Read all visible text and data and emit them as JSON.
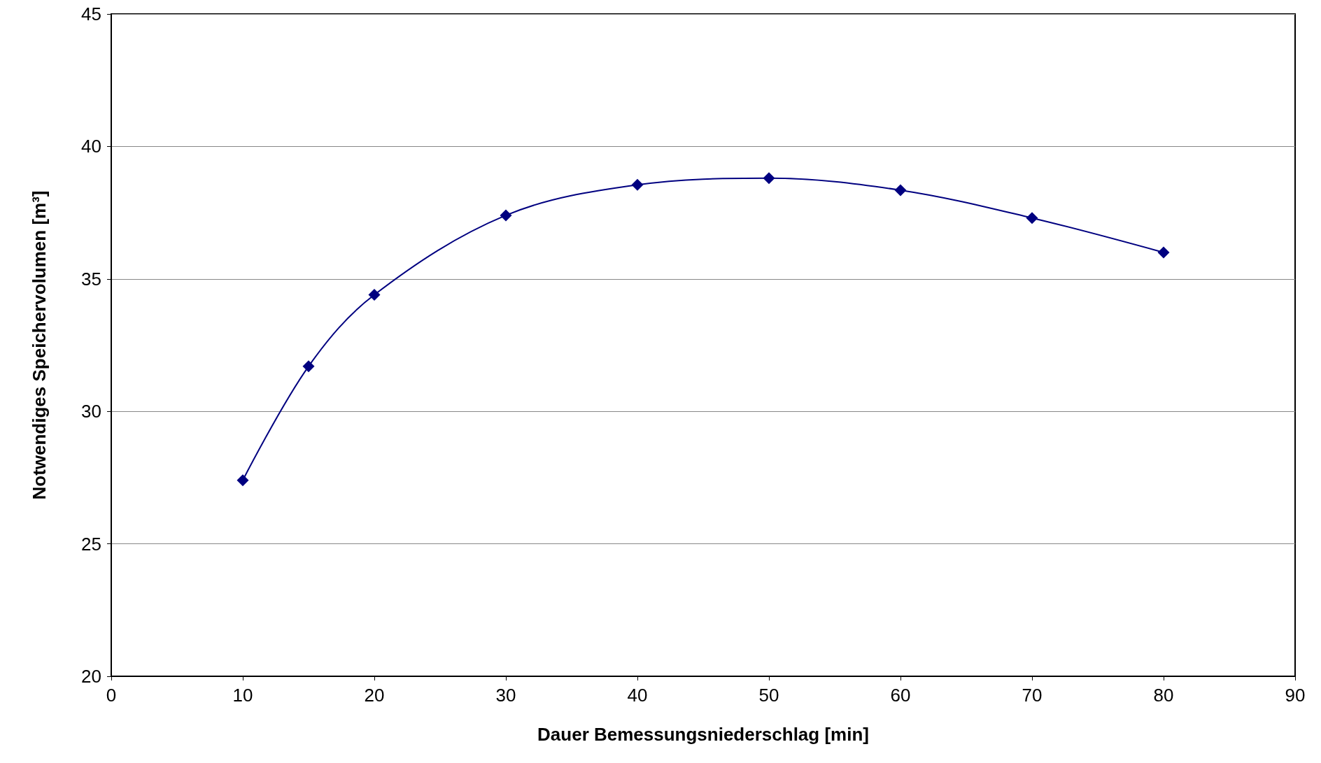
{
  "chart_data": {
    "type": "line",
    "xlabel": "Dauer Bemessungsniederschlag [min]",
    "ylabel": "Notwendiges Speichervolumen [m³]",
    "x": [
      10,
      15,
      20,
      30,
      40,
      50,
      60,
      70,
      80
    ],
    "series": [
      {
        "color": "#000080",
        "values": [
          27.4,
          31.7,
          34.4,
          37.4,
          38.55,
          38.8,
          38.35,
          37.3,
          36.0
        ]
      }
    ],
    "xlim": [
      0,
      90
    ],
    "xticks": [
      0,
      10,
      20,
      30,
      40,
      50,
      60,
      70,
      80,
      90
    ],
    "ylim": [
      20,
      45
    ],
    "yticks": [
      20,
      25,
      30,
      35,
      40,
      45
    ],
    "grid": "y",
    "marker": "diamond",
    "line_style": "solid"
  }
}
